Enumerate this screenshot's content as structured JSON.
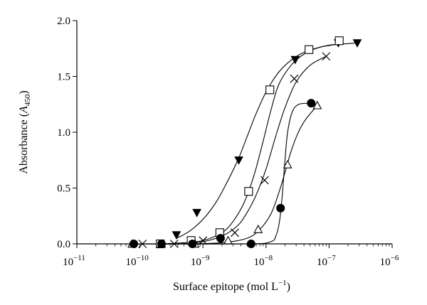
{
  "chart_data": {
    "type": "scatter",
    "xlabel_parts": [
      "Surface epitope (mol L",
      "−1",
      ")"
    ],
    "ylabel_parts": [
      "Absorbance (",
      "A",
      "450",
      ")"
    ],
    "x_scale": "log",
    "xlim": [
      1e-11,
      1e-06
    ],
    "ylim": [
      0,
      2.0
    ],
    "grid": false,
    "x_ticks": [
      {
        "value": 1e-11,
        "base": "10",
        "exp": "−11"
      },
      {
        "value": 1e-10,
        "base": "10",
        "exp": "−10"
      },
      {
        "value": 1e-09,
        "base": "10",
        "exp": "−9"
      },
      {
        "value": 1e-08,
        "base": "10",
        "exp": "−8"
      },
      {
        "value": 1e-07,
        "base": "10",
        "exp": "−7"
      },
      {
        "value": 1e-06,
        "base": "10",
        "exp": "−6"
      }
    ],
    "y_ticks": [
      {
        "value": 0.0,
        "label": "0.0"
      },
      {
        "value": 0.5,
        "label": "0.5"
      },
      {
        "value": 1.0,
        "label": "1.0"
      },
      {
        "value": 1.5,
        "label": "1.5"
      },
      {
        "value": 2.0,
        "label": "2.0"
      }
    ],
    "series": [
      {
        "marker": "triangle-down-filled",
        "x": [
          3.8e-10,
          8e-10,
          3.7e-09,
          1.15e-08,
          2.9e-08,
          1.4e-07,
          2.8e-07
        ],
        "y": [
          0.08,
          0.28,
          0.75,
          1.38,
          1.65,
          1.8,
          1.8
        ],
        "curve_x": [
          3.8e-10,
          6e-10,
          1e-09,
          1.6e-09,
          2.4e-09,
          3.7e-09,
          5e-09,
          7e-09,
          1e-08,
          1.5e-08,
          2.2e-08,
          3.5e-08,
          6e-08,
          1e-07,
          1.6e-07,
          2.8e-07
        ],
        "curve_y": [
          0.05,
          0.11,
          0.22,
          0.37,
          0.55,
          0.77,
          0.96,
          1.17,
          1.36,
          1.52,
          1.62,
          1.7,
          1.75,
          1.78,
          1.79,
          1.8
        ]
      },
      {
        "marker": "square-open",
        "x": [
          2.1e-10,
          6.5e-10,
          1.85e-09,
          5.3e-09,
          1.15e-08,
          4.8e-08,
          1.45e-07
        ],
        "y": [
          0.0,
          0.03,
          0.1,
          0.47,
          1.38,
          1.74,
          1.82
        ],
        "curve_x": [
          2.1e-10,
          5e-10,
          1e-09,
          2e-09,
          3e-09,
          4.5e-09,
          6.5e-09,
          9e-09,
          1.2e-08,
          1.6e-08,
          2.5e-08,
          4e-08,
          7e-08,
          1.45e-07
        ],
        "curve_y": [
          0.0,
          0.01,
          0.03,
          0.1,
          0.2,
          0.37,
          0.62,
          0.92,
          1.2,
          1.43,
          1.6,
          1.7,
          1.76,
          1.79
        ]
      },
      {
        "marker": "cross",
        "x": [
          1.1e-10,
          3.5e-10,
          1e-09,
          3.2e-09,
          9.5e-09,
          2.8e-08,
          9e-08
        ],
        "y": [
          0.0,
          0.0,
          0.03,
          0.1,
          0.57,
          1.48,
          1.68
        ],
        "curve_x": [
          1.1e-10,
          4e-10,
          1e-09,
          2e-09,
          3.5e-09,
          5e-09,
          7e-09,
          1e-08,
          1.4e-08,
          2e-08,
          3e-08,
          5e-08,
          9e-08
        ],
        "curve_y": [
          0.0,
          0.0,
          0.02,
          0.07,
          0.16,
          0.28,
          0.44,
          0.67,
          0.95,
          1.22,
          1.45,
          1.6,
          1.68
        ]
      },
      {
        "marker": "triangle-up-open",
        "x": [
          7.5e-11,
          2.2e-10,
          7.5e-10,
          2.5e-09,
          7.5e-09,
          2.2e-08,
          6.5e-08
        ],
        "y": [
          0.0,
          0.0,
          0.0,
          0.03,
          0.13,
          0.71,
          1.24
        ],
        "curve_x": [
          7.5e-11,
          5e-10,
          2e-09,
          5e-09,
          8e-09,
          1.2e-08,
          1.6e-08,
          2e-08,
          2.5e-08,
          3.2e-08,
          4.2e-08,
          6.5e-08
        ],
        "curve_y": [
          0.0,
          0.0,
          0.01,
          0.05,
          0.13,
          0.27,
          0.46,
          0.64,
          0.83,
          0.99,
          1.11,
          1.24
        ]
      },
      {
        "marker": "circle-filled",
        "x": [
          8e-11,
          2.2e-10,
          6.8e-10,
          1.9e-09,
          5.8e-09,
          1.7e-08,
          5.2e-08
        ],
        "y": [
          0.0,
          0.0,
          0.0,
          0.05,
          0.0,
          0.32,
          1.26
        ],
        "curve_x": [
          8e-11,
          5e-09,
          1.2e-08,
          1.45e-08,
          1.6e-08,
          1.72e-08,
          1.85e-08,
          2e-08,
          2.2e-08,
          2.6e-08,
          3.3e-08,
          5.2e-08
        ],
        "curve_y": [
          0.0,
          0.0,
          0.02,
          0.08,
          0.17,
          0.3,
          0.5,
          0.75,
          1.0,
          1.18,
          1.25,
          1.26
        ]
      }
    ]
  }
}
